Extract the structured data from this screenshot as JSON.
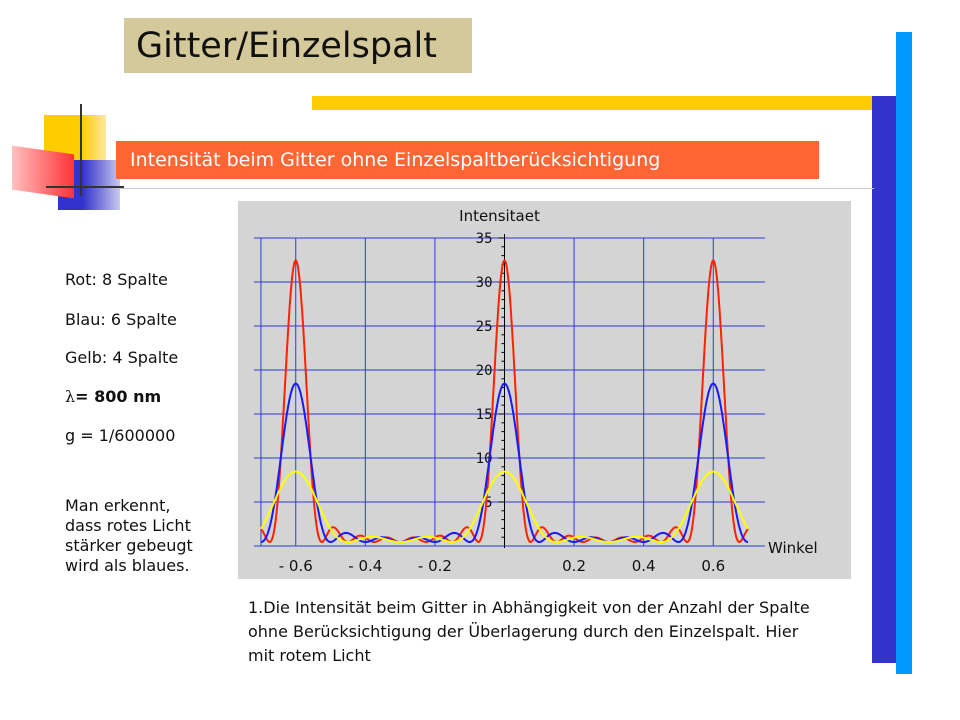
{
  "slide": {
    "title": "Gitter/Einzelspalt",
    "subtitle": "Intensität beim Gitter ohne Einzelspaltberücksichtigung",
    "colors": {
      "title_bg": "#d4c99a",
      "accent_yellow": "#ffcc00",
      "accent_blue_dark": "#3333cc",
      "accent_blue_light": "#0099ff",
      "subtitle_bg": "#ff6633"
    }
  },
  "info": {
    "line1": "Rot: 8 Spalte",
    "line2": "Blau: 6 Spalte",
    "line3": "Gelb: 4 Spalte",
    "lambda_symbol": "λ",
    "lambda_value": "= 800 nm",
    "line5": "g = 1/600000",
    "note": "Man erkennt,\ndass rotes Licht\nstärker gebeugt\nwird als blaues."
  },
  "caption": "1.Die Intensität beim Gitter in Abhängigkeit von der Anzahl der Spalte ohne Berücksichtigung der Überlagerung durch den Einzelspalt. Hier mit rotem Licht",
  "chart_data": {
    "type": "line",
    "ylabel": "Intensitaet",
    "xlabel": "Winkel",
    "xlim": [
      -0.72,
      0.72
    ],
    "ylim": [
      0,
      35
    ],
    "yticks": [
      5,
      10,
      15,
      20,
      25,
      30,
      35
    ],
    "xticks": [
      -0.6,
      -0.4,
      -0.2,
      0.2,
      0.4,
      0.6
    ],
    "xtick_labels": [
      "- 0.6",
      "- 0.4",
      "- 0.2",
      "0.2",
      "0.4",
      "0.6"
    ],
    "grid": true,
    "background": "#d4d4d4",
    "series": [
      {
        "color": "#ff2200",
        "slits": 8,
        "peak": 32,
        "x": [
          -0.6,
          0,
          0.6
        ],
        "y": [
          32,
          32,
          32
        ]
      },
      {
        "color": "#1a1aff",
        "slits": 6,
        "peak": 18,
        "x": [
          -0.6,
          0,
          0.6
        ],
        "y": [
          18,
          18,
          18
        ]
      },
      {
        "color": "#ffff00",
        "slits": 4,
        "peak": 8,
        "x": [
          -0.6,
          0,
          0.6
        ],
        "y": [
          8,
          8,
          8
        ]
      }
    ]
  }
}
